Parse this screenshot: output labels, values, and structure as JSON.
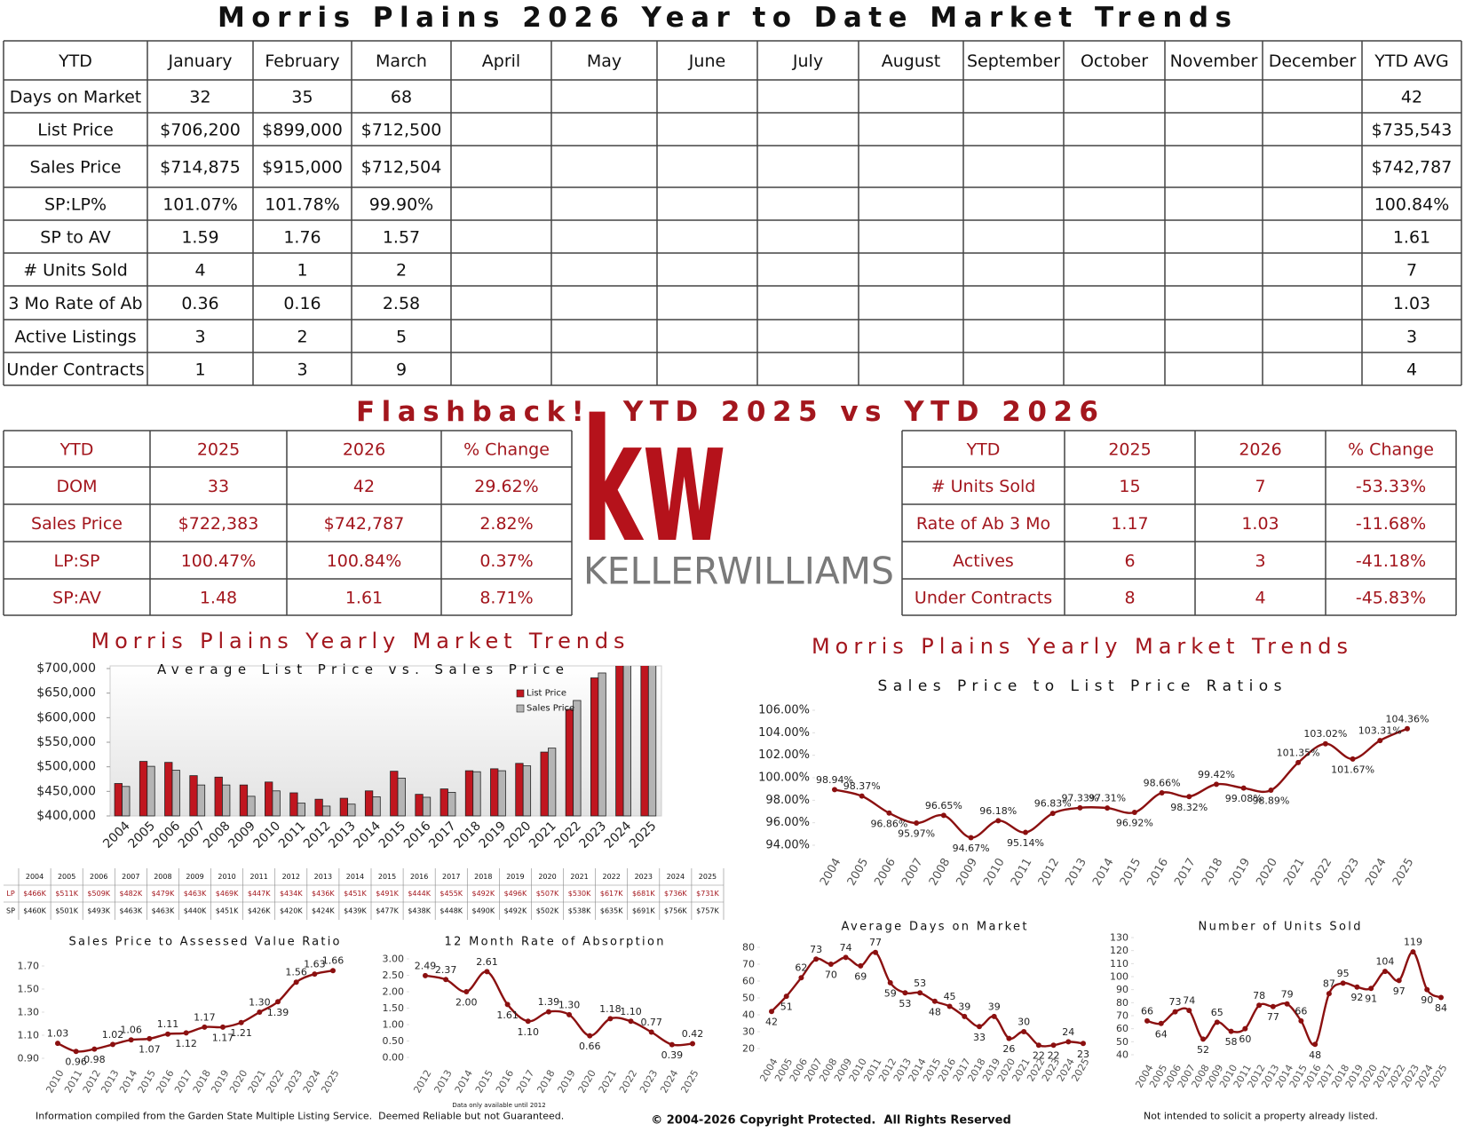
{
  "report": {
    "title": "Morris Plains 2026 Year to Date Market Trends",
    "table": {
      "header": [
        "YTD",
        "January",
        "February",
        "March",
        "April",
        "May",
        "June",
        "July",
        "August",
        "September",
        "October",
        "November",
        "December",
        "YTD AVG"
      ],
      "rows": [
        {
          "label": "Days on Market",
          "values": [
            "32",
            "35",
            "68"
          ],
          "ytd_avg": "42"
        },
        {
          "label": "List Price",
          "values": [
            "$706,200",
            "$899,000",
            "$712,500"
          ],
          "ytd_avg": "$735,543"
        },
        {
          "label": "Sales Price",
          "values": [
            "$714,875",
            "$915,000",
            "$712,504"
          ],
          "ytd_avg": "$742,787"
        },
        {
          "label": "SP:LP%",
          "values": [
            "101.07%",
            "101.78%",
            "99.90%"
          ],
          "ytd_avg": "100.84%"
        },
        {
          "label": "SP to AV",
          "values": [
            "1.59",
            "1.76",
            "1.57"
          ],
          "ytd_avg": "1.61"
        },
        {
          "label": "# Units Sold",
          "values": [
            "4",
            "1",
            "2"
          ],
          "ytd_avg": "7"
        },
        {
          "label": "3 Mo Rate of Ab",
          "values": [
            "0.36",
            "0.16",
            "2.58"
          ],
          "ytd_avg": "1.03"
        },
        {
          "label": "Active Listings",
          "values": [
            "3",
            "2",
            "5"
          ],
          "ytd_avg": "3"
        },
        {
          "label": "Under Contracts",
          "values": [
            "1",
            "3",
            "9"
          ],
          "ytd_avg": "4"
        }
      ]
    }
  },
  "flashback": {
    "title": "Flashback!  YTD 2025 vs YTD 2026",
    "left": {
      "header": [
        "YTD",
        "2025",
        "2026",
        "% Change"
      ],
      "rows": [
        [
          "DOM",
          "33",
          "42",
          "29.62%"
        ],
        [
          "Sales Price",
          "$722,383",
          "$742,787",
          "2.82%"
        ],
        [
          "LP:SP",
          "100.47%",
          "100.84%",
          "0.37%"
        ],
        [
          "SP:AV",
          "1.48",
          "1.61",
          "8.71%"
        ]
      ]
    },
    "right": {
      "header": [
        "YTD",
        "2025",
        "2026",
        "% Change"
      ],
      "rows": [
        [
          "# Units Sold",
          "15",
          "7",
          "-53.33%"
        ],
        [
          "Rate of Ab 3 Mo",
          "1.17",
          "1.03",
          "-11.68%"
        ],
        [
          "Actives",
          "6",
          "3",
          "-41.18%"
        ],
        [
          "Under Contracts",
          "8",
          "4",
          "-45.83%"
        ]
      ]
    }
  },
  "logo": {
    "mark": "kw",
    "name": "KELLERWILLIAMS"
  },
  "chart_data": [
    {
      "type": "bar",
      "heading": "Morris Plains Yearly Market Trends",
      "title": "Average List Price vs. Sales Price",
      "categories": [
        "2004",
        "2005",
        "2006",
        "2007",
        "2008",
        "2009",
        "2010",
        "2011",
        "2012",
        "2013",
        "2014",
        "2015",
        "2016",
        "2017",
        "2018",
        "2019",
        "2020",
        "2021",
        "2022",
        "2023",
        "2024",
        "2025"
      ],
      "series": [
        {
          "name": "List Price",
          "label": "LP",
          "color": "#c0161f",
          "values": [
            466000,
            511000,
            509000,
            482000,
            479000,
            463000,
            469000,
            447000,
            434000,
            436000,
            451000,
            491000,
            444000,
            455000,
            492000,
            496000,
            507000,
            530000,
            617000,
            681000,
            736000,
            731000
          ],
          "value_labels": [
            "$466K",
            "$511K",
            "$509K",
            "$482K",
            "$479K",
            "$463K",
            "$469K",
            "$447K",
            "$434K",
            "$436K",
            "$451K",
            "$491K",
            "$444K",
            "$455K",
            "$492K",
            "$496K",
            "$507K",
            "$530K",
            "$617K",
            "$681K",
            "$736K",
            "$731K"
          ]
        },
        {
          "name": "Sales Price",
          "label": "SP",
          "color": "#b4b4b4",
          "values": [
            460000,
            501000,
            493000,
            463000,
            463000,
            440000,
            451000,
            426000,
            420000,
            424000,
            439000,
            477000,
            438000,
            448000,
            490000,
            492000,
            502000,
            538000,
            635000,
            691000,
            756000,
            757000
          ],
          "value_labels": [
            "$460K",
            "$501K",
            "$493K",
            "$463K",
            "$463K",
            "$440K",
            "$451K",
            "$426K",
            "$420K",
            "$424K",
            "$439K",
            "$477K",
            "$438K",
            "$448K",
            "$490K",
            "$492K",
            "$502K",
            "$538K",
            "$635K",
            "$691K",
            "$756K",
            "$757K"
          ]
        }
      ],
      "ylim": [
        400000,
        700000
      ],
      "yticks": [
        {
          "value": 400000,
          "label": "$400,000"
        },
        {
          "value": 450000,
          "label": "$450,000"
        },
        {
          "value": 500000,
          "label": "$500,000"
        },
        {
          "value": 550000,
          "label": "$550,000"
        },
        {
          "value": 600000,
          "label": "$600,000"
        },
        {
          "value": 650000,
          "label": "$650,000"
        },
        {
          "value": 700000,
          "label": "$700,000"
        }
      ],
      "legend": "upper right"
    },
    {
      "type": "line",
      "heading": "Morris Plains Yearly Market Trends",
      "title": "Sales Price to List Price Ratios",
      "color": "#8b1010",
      "categories": [
        "2004",
        "2005",
        "2006",
        "2007",
        "2008",
        "2009",
        "2010",
        "2011",
        "2012",
        "2013",
        "2014",
        "2015",
        "2016",
        "2017",
        "2018",
        "2019",
        "2020",
        "2021",
        "2022",
        "2023",
        "2024",
        "2025"
      ],
      "values": [
        98.94,
        98.37,
        96.86,
        95.97,
        96.65,
        94.67,
        96.18,
        95.14,
        96.83,
        97.33,
        97.31,
        96.92,
        98.66,
        98.32,
        99.42,
        99.08,
        98.89,
        101.35,
        103.02,
        101.67,
        103.31,
        104.36
      ],
      "value_labels": [
        "98.94%",
        "98.37%",
        "96.86%",
        "95.97%",
        "96.65%",
        "94.67%",
        "96.18%",
        "95.14%",
        "96.83%",
        "97.33%",
        "97.31%",
        "96.92%",
        "98.66%",
        "98.32%",
        "99.42%",
        "99.08%",
        "98.89%",
        "101.35%",
        "103.02%",
        "101.67%",
        "103.31%",
        "104.36%"
      ],
      "ylim": [
        94,
        106
      ],
      "yticks": [
        {
          "value": 94,
          "label": "94.00%"
        },
        {
          "value": 96,
          "label": "96.00%"
        },
        {
          "value": 98,
          "label": "98.00%"
        },
        {
          "value": 100,
          "label": "100.00%"
        },
        {
          "value": 102,
          "label": "102.00%"
        },
        {
          "value": 104,
          "label": "104.00%"
        },
        {
          "value": 106,
          "label": "106.00%"
        }
      ]
    },
    {
      "type": "line",
      "title": "Sales Price to Assessed Value Ratio",
      "color": "#8b1010",
      "categories": [
        "2010",
        "2011",
        "2012",
        "2013",
        "2014",
        "2015",
        "2016",
        "2017",
        "2018",
        "2019",
        "2020",
        "2021",
        "2022",
        "2023",
        "2024",
        "2025"
      ],
      "values": [
        1.03,
        0.96,
        0.98,
        1.02,
        1.06,
        1.07,
        1.11,
        1.12,
        1.17,
        1.17,
        1.21,
        1.3,
        1.39,
        1.56,
        1.63,
        1.66
      ],
      "value_labels": [
        "1.03",
        "0.96",
        "0.98",
        "1.02",
        "1.06",
        "1.07",
        "1.11",
        "1.12",
        "1.17",
        "1.17",
        "1.21",
        "1.30",
        "1.39",
        "1.56",
        "1.63",
        "1.66"
      ],
      "ylim": [
        0.9,
        1.7
      ],
      "yticks": [
        {
          "value": 0.9,
          "label": "0.90"
        },
        {
          "value": 1.1,
          "label": "1.10"
        },
        {
          "value": 1.3,
          "label": "1.30"
        },
        {
          "value": 1.5,
          "label": "1.50"
        },
        {
          "value": 1.7,
          "label": "1.70"
        }
      ]
    },
    {
      "type": "line",
      "title": "12 Month Rate of Absorption",
      "color": "#8b1010",
      "note": "Data only available until 2012",
      "categories": [
        "2012",
        "2013",
        "2014",
        "2015",
        "2016",
        "2017",
        "2018",
        "2019",
        "2020",
        "2021",
        "2022",
        "2023",
        "2024",
        "2025"
      ],
      "values": [
        2.49,
        2.37,
        2.0,
        2.61,
        1.61,
        1.1,
        1.39,
        1.3,
        0.66,
        1.18,
        1.1,
        0.77,
        0.39,
        0.42
      ],
      "value_labels": [
        "2.49",
        "2.37",
        "2.00",
        "2.61",
        "1.61",
        "1.10",
        "1.39",
        "1.30",
        "0.66",
        "1.18",
        "1.10",
        "0.77",
        "0.39",
        "0.42"
      ],
      "ylim": [
        0,
        3
      ],
      "yticks": [
        {
          "value": 0,
          "label": "0.00"
        },
        {
          "value": 0.5,
          "label": "0.50"
        },
        {
          "value": 1,
          "label": "1.00"
        },
        {
          "value": 1.5,
          "label": "1.50"
        },
        {
          "value": 2,
          "label": "2.00"
        },
        {
          "value": 2.5,
          "label": "2.50"
        },
        {
          "value": 3,
          "label": "3.00"
        }
      ]
    },
    {
      "type": "line",
      "title": "Average Days on Market",
      "color": "#8b1010",
      "categories": [
        "2004",
        "2005",
        "2006",
        "2007",
        "2008",
        "2009",
        "2010",
        "2011",
        "2012",
        "2013",
        "2014",
        "2015",
        "2016",
        "2017",
        "2018",
        "2019",
        "2020",
        "2021",
        "2022",
        "2023",
        "2024",
        "2025"
      ],
      "values": [
        42,
        51,
        62,
        73,
        70,
        74,
        69,
        77,
        59,
        53,
        53,
        48,
        45,
        39,
        33,
        39,
        26,
        30,
        22,
        22,
        24,
        23
      ],
      "ylim": [
        20,
        80
      ],
      "yticks": [
        20,
        30,
        40,
        50,
        60,
        70,
        80
      ]
    },
    {
      "type": "line",
      "title": "Number of Units Sold",
      "color": "#8b1010",
      "categories": [
        "2004",
        "2005",
        "2006",
        "2007",
        "2008",
        "2009",
        "2010",
        "2011",
        "2012",
        "2013",
        "2014",
        "2015",
        "2016",
        "2017",
        "2018",
        "2019",
        "2020",
        "2021",
        "2022",
        "2023",
        "2024",
        "2025"
      ],
      "values": [
        66,
        64,
        73,
        74,
        52,
        65,
        58,
        60,
        78,
        77,
        79,
        66,
        48,
        87,
        95,
        92,
        91,
        104,
        97,
        119,
        90,
        84
      ],
      "ylim": [
        40,
        130
      ],
      "yticks": [
        40,
        50,
        60,
        70,
        80,
        90,
        100,
        110,
        120,
        130
      ]
    }
  ],
  "footer": {
    "source": "Information compiled from the Garden State Multiple Listing Service.  Deemed Reliable but not Guaranteed.",
    "copyright": "© 2004-2026 Copyright Protected.  All Rights Reserved",
    "disclaimer": "Not intended to solicit a property already listed."
  }
}
